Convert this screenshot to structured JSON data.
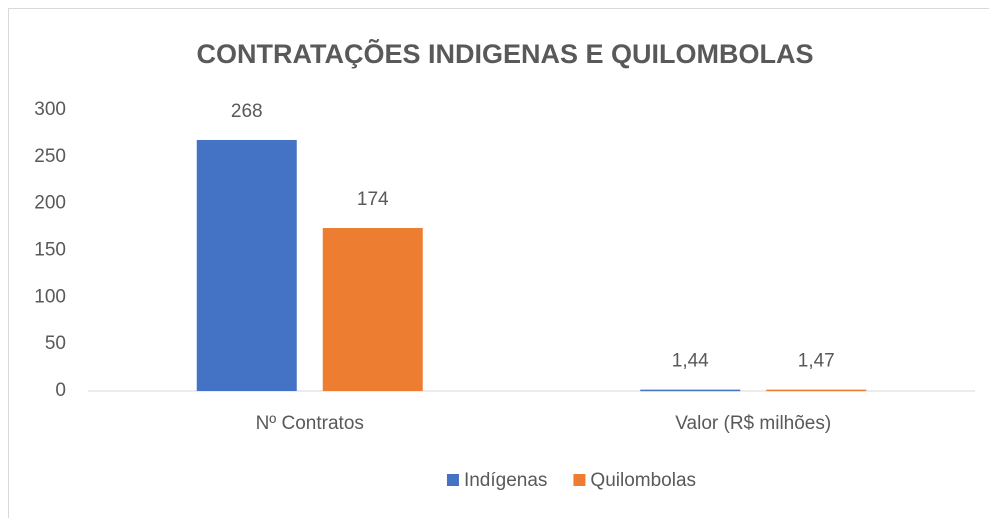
{
  "chart_data": {
    "type": "bar",
    "title": "CONTRATAÇÕES INDIGENAS E QUILOMBOLAS",
    "categories": [
      "Nº Contratos",
      "Valor (R$ milhões)"
    ],
    "series": [
      {
        "name": "Indígenas",
        "color": "#4472c4",
        "values": [
          268,
          1.44
        ],
        "value_labels": [
          "268",
          "1,44"
        ]
      },
      {
        "name": "Quilombolas",
        "color": "#ed7d31",
        "values": [
          174,
          1.47
        ],
        "value_labels": [
          "174",
          "1,47"
        ]
      }
    ],
    "ylim": [
      0,
      300
    ],
    "yticks": [
      0,
      50,
      100,
      150,
      200,
      250,
      300
    ],
    "grid": false,
    "legend": "bottom"
  }
}
